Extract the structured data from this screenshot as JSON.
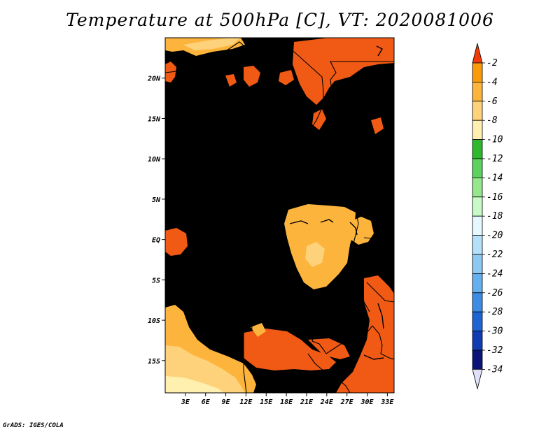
{
  "title": "Temperature at 500hPa [C], VT: 2020081006",
  "credit": "GrADS: IGES/COLA",
  "map": {
    "lon_range": [
      0,
      34
    ],
    "lat_range": [
      -19,
      25
    ],
    "x_ticks": [
      {
        "lon": 3,
        "label": "3E"
      },
      {
        "lon": 6,
        "label": "6E"
      },
      {
        "lon": 9,
        "label": "9E"
      },
      {
        "lon": 12,
        "label": "12E"
      },
      {
        "lon": 15,
        "label": "15E"
      },
      {
        "lon": 18,
        "label": "18E"
      },
      {
        "lon": 21,
        "label": "21E"
      },
      {
        "lon": 24,
        "label": "24E"
      },
      {
        "lon": 27,
        "label": "27E"
      },
      {
        "lon": 30,
        "label": "30E"
      },
      {
        "lon": 33,
        "label": "33E"
      }
    ],
    "y_ticks": [
      {
        "lat": 20,
        "label": "20N"
      },
      {
        "lat": 15,
        "label": "15N"
      },
      {
        "lat": 10,
        "label": "10N"
      },
      {
        "lat": 5,
        "label": "5N"
      },
      {
        "lat": 0,
        "label": "EQ"
      },
      {
        "lat": -5,
        "label": "5S"
      },
      {
        "lat": -10,
        "label": "10S"
      },
      {
        "lat": -15,
        "label": "15S"
      }
    ],
    "base_class": "-6 to -4",
    "field_colors": {
      "-2 to -4": "#f05a14",
      "-4 to -6": "#fa9b0a",
      "-6 to -8": "#fdb43c",
      "-8 to -10": "#fed27a",
      "-10 to -12": "#fff0b0"
    }
  },
  "colorbar": {
    "levels": [
      "-2",
      "-4",
      "-6",
      "-8",
      "-10",
      "-12",
      "-14",
      "-16",
      "-18",
      "-20",
      "-22",
      "-24",
      "-26",
      "-28",
      "-30",
      "-32",
      "-34"
    ],
    "colors": [
      "#f05a14",
      "#fa9b0a",
      "#fdb43c",
      "#fed27a",
      "#fff0b0",
      "#2db82d",
      "#5ed25e",
      "#96e68c",
      "#c8fac8",
      "#e6f8ff",
      "#b4e0fa",
      "#8cc8f0",
      "#64aff0",
      "#3c8ce6",
      "#1e64d2",
      "#0f3cb4",
      "#0a1478"
    ],
    "top_color": "#f03c0a",
    "bottom_color": "#e0e0f8"
  }
}
